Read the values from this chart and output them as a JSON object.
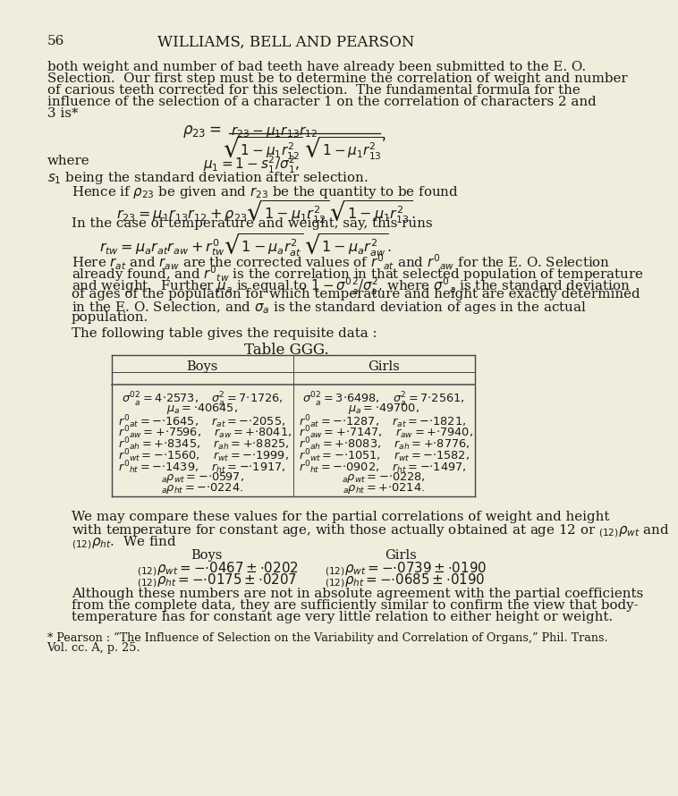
{
  "bg_color": "#f0eddc",
  "text_color": "#1a1a1a",
  "page_number": "56",
  "header": "WILLIAMS, BELL AND PEARSON",
  "para1_lines": [
    "both weight and number of bad teeth have already been submitted to the E. O.",
    "Selection.  Our first step must be to determine the correlation of weight and number",
    "of carious teeth corrected for this selection.  The fundamental formula for the",
    "influence of the selection of a character 1 on the correlation of characters 2 and",
    "3 is*"
  ],
  "here_lines": [
    "Here $r_{at}$ and $r_{aw}$ are the corrected values of $r'_{at}$ and $r'_{aw}$ for the E. O. Selection",
    "already found, and $r'_{tw}$ is the correlation in that selected population of temperature",
    "and weight.  Further $\\mu_a$ is equal to $1 - \\sigma'^2_a/\\sigma^2_a$, where $\\sigma'_a$ is the standard deviation",
    "of ages of the population for which temperature and height are exactly determined",
    "in the E. O. Selection, and $\\sigma_a$ is the standard deviation of ages in the actual",
    "population."
  ],
  "compare_lines": [
    "We may compare these values for the partial correlations of weight and height",
    "with temperature for constant age, with those actually obtained at age 12 or ${}_{(12)}\\rho_{wt}$ and",
    "${}_{(12)}\\rho_{ht}$.  We find"
  ],
  "although_lines": [
    "Although these numbers are not in absolute agreement with the partial coefficients",
    "from the complete data, they are sufficiently similar to confirm the view that body-",
    "temperature has for constant age very little relation to either height or weight."
  ],
  "footnote_lines": [
    "* Pearson : “The Influence of Selection on the Variability and Correlation of Organs,” Phil. Trans.",
    "Vol. cc. A, p. 25."
  ]
}
